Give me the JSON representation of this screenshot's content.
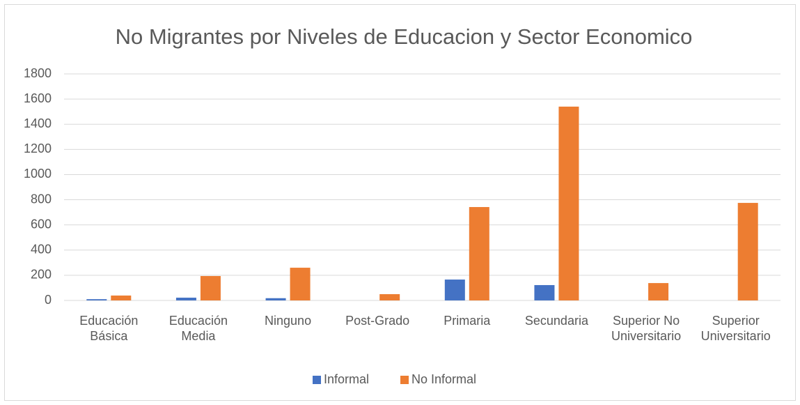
{
  "chart_data": {
    "type": "bar",
    "title": "No Migrantes por Niveles de Educacion y Sector Economico",
    "categories": [
      "Educación Básica",
      "Educación Media",
      "Ninguno",
      "Post-Grado",
      "Primaria",
      "Secundaria",
      "Superior No Universitario",
      "Superior Universitario"
    ],
    "series": [
      {
        "name": "Informal",
        "color": "#4472c4",
        "values": [
          10,
          22,
          18,
          0,
          166,
          122,
          0,
          0
        ]
      },
      {
        "name": "No Informal",
        "color": "#ed7d31",
        "values": [
          39,
          194,
          260,
          50,
          742,
          1540,
          138,
          775
        ]
      }
    ],
    "ylim": [
      0,
      1800
    ],
    "yticks": [
      0,
      200,
      400,
      600,
      800,
      1000,
      1200,
      1400,
      1600,
      1800
    ],
    "grid": true,
    "legend": "bottom"
  }
}
